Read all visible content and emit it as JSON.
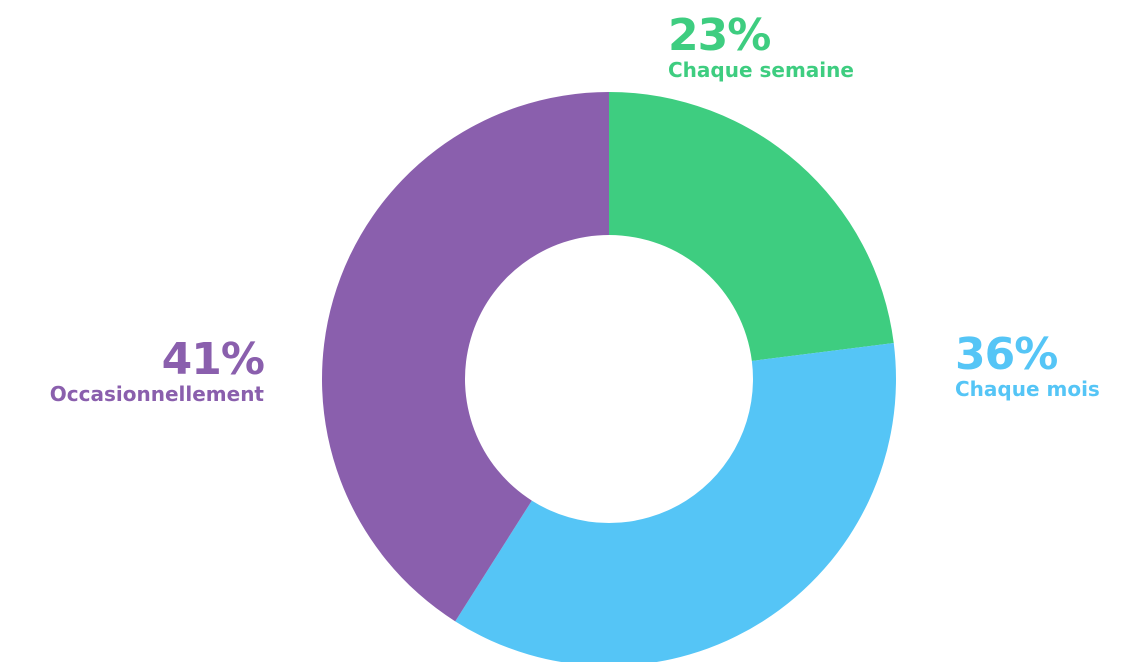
{
  "chart_data": {
    "type": "pie",
    "variant": "donut",
    "title": "",
    "legend": "none",
    "slices": [
      {
        "label": "Chaque semaine",
        "value": 23,
        "display": "23%",
        "color": "#3ECD80"
      },
      {
        "label": "Chaque mois",
        "value": 36,
        "display": "36%",
        "color": "#55C5F6"
      },
      {
        "label": "Occasionnellement",
        "value": 41,
        "display": "41%",
        "color": "#8A5FAD"
      }
    ],
    "start_angle": "top",
    "direction": "clockwise"
  }
}
